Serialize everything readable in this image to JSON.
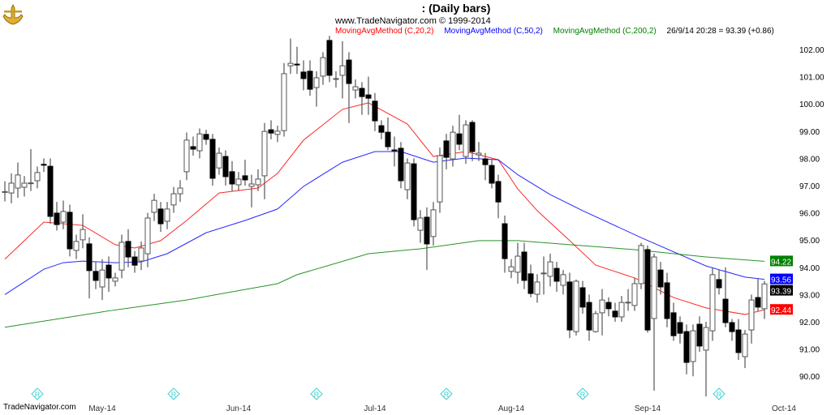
{
  "header": {
    "title": ":   (Daily bars)",
    "copyright": "www.TradeNavigator.com © 1999-2014",
    "indicators": [
      {
        "label": "MovingAvgMethod (C,20,2)",
        "color": "#ff0000"
      },
      {
        "label": "MovingAvgMethod (C,50,2)",
        "color": "#0000ff"
      },
      {
        "label": "MovingAvgMethod (C,200,2)",
        "color": "#008000"
      }
    ],
    "last_quote": "26/9/14 20:28 = 93.39 (+0.86)"
  },
  "footer": {
    "brand": "TradeNavigator.com"
  },
  "chart_data": {
    "type": "candlestick",
    "xlabel": "",
    "ylabel": "",
    "ylim": [
      89.2,
      102.6
    ],
    "y_ticks": [
      "102.00",
      "101.00",
      "100.00",
      "99.00",
      "98.00",
      "97.00",
      "96.00",
      "95.00",
      "94.00",
      "93.00",
      "92.00",
      "91.00",
      "90.00"
    ],
    "x_ticks": [
      {
        "label": "May-14",
        "bar": 15
      },
      {
        "label": "Jun-14",
        "bar": 36
      },
      {
        "label": "Jul-14",
        "bar": 57
      },
      {
        "label": "Aug-14",
        "bar": 78
      },
      {
        "label": "Sep-14",
        "bar": 99
      },
      {
        "label": "Oct-14",
        "bar": 120
      }
    ],
    "event_markers_at_bars": [
      5,
      26,
      48,
      68,
      89,
      110
    ],
    "ohlc": [
      [
        96.76,
        97.16,
        96.42,
        96.78
      ],
      [
        96.73,
        97.45,
        96.35,
        97.09
      ],
      [
        96.91,
        97.85,
        96.55,
        97.39
      ],
      [
        96.94,
        97.35,
        96.6,
        97.09
      ],
      [
        97.09,
        98.34,
        96.8,
        97.1
      ],
      [
        97.18,
        97.7,
        96.9,
        97.48
      ],
      [
        97.78,
        98.0,
        97.5,
        97.75
      ],
      [
        97.71,
        98.0,
        95.6,
        95.87
      ],
      [
        95.99,
        96.4,
        95.35,
        95.57
      ],
      [
        95.66,
        96.45,
        95.4,
        96.05
      ],
      [
        96.02,
        96.3,
        94.4,
        94.68
      ],
      [
        94.62,
        95.2,
        94.3,
        94.95
      ],
      [
        95.01,
        95.95,
        94.7,
        95.39
      ],
      [
        94.86,
        95.1,
        92.86,
        93.88
      ],
      [
        93.85,
        94.2,
        93.2,
        93.52
      ],
      [
        93.28,
        94.3,
        92.8,
        93.9
      ],
      [
        94.08,
        94.4,
        93.1,
        93.61
      ],
      [
        93.49,
        93.8,
        93.3,
        93.61
      ],
      [
        93.9,
        95.2,
        93.6,
        94.92
      ],
      [
        94.95,
        95.4,
        94.0,
        94.38
      ],
      [
        94.38,
        94.6,
        93.8,
        94.08
      ],
      [
        94.23,
        94.95,
        93.9,
        94.71
      ],
      [
        94.5,
        96.0,
        94.0,
        95.81
      ],
      [
        96.02,
        96.7,
        95.7,
        96.46
      ],
      [
        96.14,
        96.4,
        95.3,
        95.6
      ],
      [
        95.69,
        96.4,
        95.4,
        96.14
      ],
      [
        96.29,
        96.95,
        96.0,
        96.7
      ],
      [
        96.7,
        97.2,
        96.4,
        96.91
      ],
      [
        97.51,
        98.95,
        97.2,
        98.67
      ],
      [
        98.43,
        98.8,
        98.1,
        98.34
      ],
      [
        98.28,
        99.1,
        98.0,
        98.9
      ],
      [
        98.88,
        99.05,
        98.5,
        98.7
      ],
      [
        98.7,
        98.9,
        97.0,
        97.27
      ],
      [
        97.65,
        98.4,
        97.4,
        98.19
      ],
      [
        98.07,
        98.3,
        97.0,
        97.33
      ],
      [
        97.51,
        97.9,
        96.8,
        97.06
      ],
      [
        97.03,
        97.5,
        96.8,
        97.24
      ],
      [
        97.36,
        97.95,
        97.0,
        97.21
      ],
      [
        96.97,
        97.4,
        96.2,
        97.06
      ],
      [
        97.03,
        97.6,
        96.8,
        97.24
      ],
      [
        97.36,
        99.3,
        96.5,
        98.99
      ],
      [
        99.05,
        99.4,
        98.7,
        98.93
      ],
      [
        98.88,
        99.2,
        98.6,
        99.0
      ],
      [
        99.02,
        101.5,
        98.8,
        101.11
      ],
      [
        101.4,
        102.4,
        101.1,
        101.49
      ],
      [
        101.46,
        102.1,
        101.1,
        101.45
      ],
      [
        101.17,
        101.6,
        100.5,
        100.93
      ],
      [
        101.2,
        101.6,
        100.3,
        100.54
      ],
      [
        100.6,
        101.2,
        99.9,
        100.96
      ],
      [
        101.02,
        101.9,
        100.7,
        101.7
      ],
      [
        102.33,
        102.5,
        100.8,
        101.05
      ],
      [
        100.93,
        101.2,
        100.6,
        100.93
      ],
      [
        101.05,
        102.3,
        100.2,
        101.4
      ],
      [
        101.61,
        101.9,
        99.3,
        100.75
      ],
      [
        100.51,
        100.9,
        100.2,
        100.63
      ],
      [
        100.57,
        100.8,
        99.6,
        100.27
      ],
      [
        100.33,
        101.0,
        99.6,
        100.21
      ],
      [
        100.1,
        100.4,
        99.0,
        99.38
      ],
      [
        99.2,
        99.4,
        98.7,
        98.96
      ],
      [
        98.96,
        99.5,
        98.3,
        98.43
      ],
      [
        98.31,
        98.8,
        97.7,
        98.3
      ],
      [
        98.37,
        98.6,
        96.9,
        97.18
      ],
      [
        96.85,
        98.0,
        96.5,
        97.83
      ],
      [
        97.8,
        98.0,
        95.5,
        95.75
      ],
      [
        95.36,
        96.1,
        94.9,
        95.81
      ],
      [
        95.84,
        96.2,
        93.9,
        94.86
      ],
      [
        95.13,
        96.4,
        94.8,
        96.11
      ],
      [
        96.4,
        98.4,
        96.0,
        98.1
      ],
      [
        98.64,
        98.9,
        97.6,
        98.04
      ],
      [
        97.98,
        99.2,
        97.7,
        98.96
      ],
      [
        98.9,
        99.6,
        98.3,
        98.52
      ],
      [
        98.07,
        99.4,
        97.8,
        99.23
      ],
      [
        99.32,
        99.4,
        97.9,
        98.25
      ],
      [
        98.13,
        98.6,
        97.9,
        98.19
      ],
      [
        97.98,
        98.2,
        97.2,
        97.77
      ],
      [
        97.74,
        97.95,
        96.9,
        97.09
      ],
      [
        97.15,
        97.4,
        95.8,
        96.4
      ],
      [
        95.6,
        95.9,
        93.8,
        94.32
      ],
      [
        93.85,
        94.3,
        93.6,
        94.02
      ],
      [
        93.82,
        94.9,
        93.4,
        94.41
      ],
      [
        94.56,
        94.9,
        93.2,
        93.52
      ],
      [
        93.76,
        94.1,
        92.9,
        93.04
      ],
      [
        93.01,
        93.75,
        92.7,
        93.46
      ],
      [
        93.79,
        94.4,
        93.0,
        93.79
      ],
      [
        93.67,
        94.5,
        93.3,
        94.2
      ],
      [
        93.96,
        94.2,
        93.1,
        93.49
      ],
      [
        93.34,
        93.9,
        93.0,
        93.73
      ],
      [
        93.46,
        93.8,
        91.4,
        91.7
      ],
      [
        91.64,
        93.55,
        91.5,
        93.49
      ],
      [
        93.25,
        93.5,
        92.3,
        92.54
      ],
      [
        92.71,
        93.0,
        91.3,
        91.7
      ],
      [
        91.64,
        92.4,
        91.6,
        92.3
      ],
      [
        92.33,
        93.2,
        91.5,
        92.8
      ],
      [
        92.71,
        92.9,
        92.2,
        92.48
      ],
      [
        92.39,
        92.7,
        92.0,
        92.18
      ],
      [
        92.18,
        92.95,
        92.0,
        92.71
      ],
      [
        92.71,
        93.2,
        92.4,
        92.72
      ],
      [
        92.6,
        93.6,
        92.4,
        93.4
      ],
      [
        93.4,
        94.9,
        93.2,
        94.8
      ],
      [
        94.65,
        94.8,
        91.6,
        91.7
      ],
      [
        92.12,
        94.5,
        89.47,
        94.38
      ],
      [
        93.9,
        94.2,
        93.0,
        93.28
      ],
      [
        93.43,
        93.8,
        91.8,
        92.12
      ],
      [
        92.33,
        92.7,
        91.3,
        91.49
      ],
      [
        91.97,
        92.2,
        91.2,
        91.58
      ],
      [
        91.64,
        91.9,
        90.07,
        90.51
      ],
      [
        90.54,
        91.9,
        90.0,
        91.67
      ],
      [
        91.91,
        92.2,
        90.9,
        91.11
      ],
      [
        90.96,
        92.0,
        89.26,
        91.79
      ],
      [
        91.67,
        94.0,
        91.3,
        93.73
      ],
      [
        93.55,
        93.9,
        93.0,
        93.25
      ],
      [
        92.83,
        94.0,
        91.8,
        91.97
      ],
      [
        91.97,
        92.1,
        91.3,
        91.64
      ],
      [
        91.7,
        92.1,
        90.6,
        90.87
      ],
      [
        90.72,
        91.7,
        90.3,
        91.55
      ],
      [
        91.7,
        93.0,
        91.2,
        92.8
      ],
      [
        92.89,
        93.6,
        92.4,
        92.54
      ],
      [
        92.48,
        93.5,
        92.1,
        93.39
      ]
    ],
    "moving_averages": [
      {
        "name": "MovingAvgMethod (C,20,2)",
        "color": "#ff0000",
        "last": "92.44",
        "points": [
          [
            0,
            94.3
          ],
          [
            6,
            95.66
          ],
          [
            12,
            95.54
          ],
          [
            17,
            94.83
          ],
          [
            20,
            94.71
          ],
          [
            24,
            94.98
          ],
          [
            28,
            95.72
          ],
          [
            33,
            96.73
          ],
          [
            39,
            96.91
          ],
          [
            42,
            97.45
          ],
          [
            46,
            98.67
          ],
          [
            52,
            99.8
          ],
          [
            56,
            100.04
          ],
          [
            62,
            99.26
          ],
          [
            66,
            98.07
          ],
          [
            71,
            98.25
          ],
          [
            76,
            97.95
          ],
          [
            79,
            96.88
          ],
          [
            82,
            96.08
          ],
          [
            87,
            94.98
          ],
          [
            91,
            94.08
          ],
          [
            97,
            93.61
          ],
          [
            103,
            92.89
          ],
          [
            108,
            92.51
          ],
          [
            114,
            92.27
          ],
          [
            117,
            92.44
          ]
        ]
      },
      {
        "name": "MovingAvgMethod (C,50,2)",
        "color": "#0000ff",
        "last": "93.56",
        "points": [
          [
            0,
            93.0
          ],
          [
            6,
            93.93
          ],
          [
            9,
            94.17
          ],
          [
            12,
            94.23
          ],
          [
            17,
            94.17
          ],
          [
            21,
            94.2
          ],
          [
            25,
            94.5
          ],
          [
            31,
            95.27
          ],
          [
            37,
            95.72
          ],
          [
            42,
            96.14
          ],
          [
            46,
            96.97
          ],
          [
            52,
            97.86
          ],
          [
            57,
            98.25
          ],
          [
            61,
            98.25
          ],
          [
            66,
            97.86
          ],
          [
            71,
            98.01
          ],
          [
            76,
            97.95
          ],
          [
            79,
            97.4
          ],
          [
            84,
            96.67
          ],
          [
            89,
            96.08
          ],
          [
            98,
            95.09
          ],
          [
            108,
            94.05
          ],
          [
            114,
            93.64
          ],
          [
            117,
            93.56
          ]
        ]
      },
      {
        "name": "MovingAvgMethod (C,200,2)",
        "color": "#008000",
        "last": "94.22",
        "points": [
          [
            0,
            91.8
          ],
          [
            16,
            92.4
          ],
          [
            28,
            92.8
          ],
          [
            42,
            93.4
          ],
          [
            45,
            93.73
          ],
          [
            56,
            94.5
          ],
          [
            64,
            94.68
          ],
          [
            73,
            94.98
          ],
          [
            79,
            94.98
          ],
          [
            87,
            94.83
          ],
          [
            97,
            94.65
          ],
          [
            108,
            94.38
          ],
          [
            117,
            94.22
          ]
        ]
      }
    ],
    "last_close": "93.39",
    "last_close_color": "#000000"
  }
}
